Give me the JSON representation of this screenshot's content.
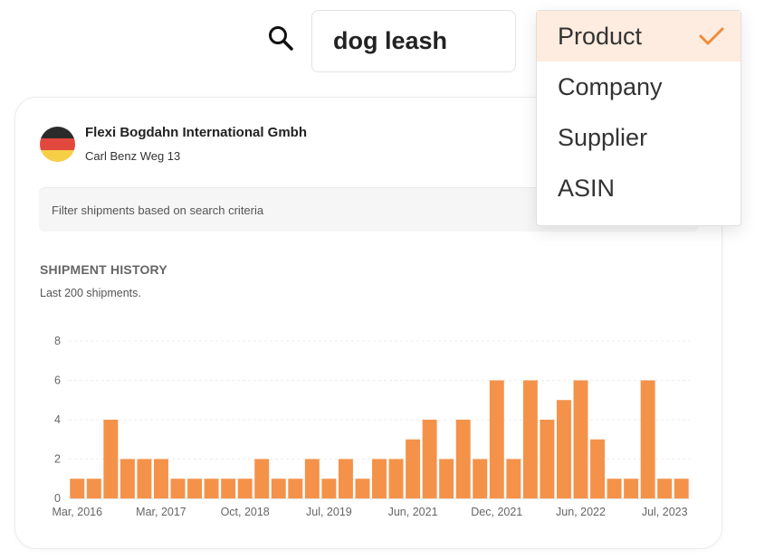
{
  "search": {
    "query": "dog leash",
    "icon": "search-icon"
  },
  "dropdown": {
    "options": [
      "Product",
      "Company",
      "Supplier",
      "ASIN"
    ],
    "selected": "Product",
    "check_color": "#f08a3a",
    "selected_bg": "#fdecdf"
  },
  "company": {
    "name": "Flexi Bogdahn International Gmbh",
    "address": "Carl Benz Weg 13",
    "flag": "germany-flag-icon"
  },
  "filter": {
    "placeholder": "Filter shipments based on search criteria"
  },
  "section": {
    "title": "SHIPMENT HISTORY",
    "subtitle": "Last 200 shipments."
  },
  "chart_data": {
    "type": "bar",
    "title": "",
    "xlabel": "",
    "ylabel": "",
    "ylim": [
      0,
      8
    ],
    "yticks": [
      0,
      2,
      4,
      6,
      8
    ],
    "xtick_labels": [
      "Mar, 2016",
      "Mar, 2017",
      "Oct, 2018",
      "Jul, 2019",
      "Jun, 2021",
      "Dec, 2021",
      "Jun, 2022",
      "Jul, 2023"
    ],
    "xtick_bar_index": [
      0,
      5,
      10,
      15,
      20,
      25,
      30,
      35
    ],
    "values": [
      1,
      1,
      4,
      2,
      2,
      2,
      1,
      1,
      1,
      1,
      1,
      2,
      1,
      1,
      2,
      1,
      2,
      1,
      2,
      2,
      3,
      4,
      2,
      4,
      2,
      6,
      2,
      6,
      4,
      5,
      6,
      3,
      1,
      1,
      6,
      1,
      1
    ],
    "bar_color": "#f4924a",
    "grid": true
  }
}
